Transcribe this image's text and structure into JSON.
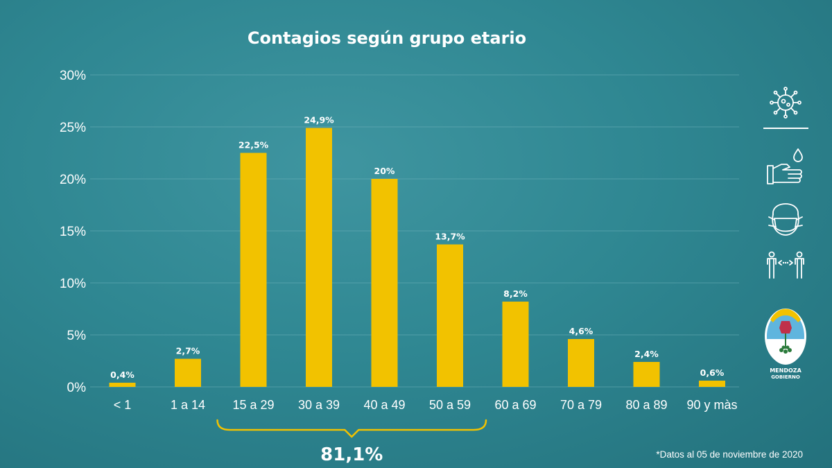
{
  "chart_data": {
    "type": "bar",
    "title": "Contagios según grupo etario",
    "categories": [
      "< 1",
      "1 a 14",
      "15 a 29",
      "30 a 39",
      "40 a 49",
      "50 a 59",
      "60 a 69",
      "70 a 79",
      "80 a 89",
      "90 y màs"
    ],
    "values": [
      0.4,
      2.7,
      22.5,
      24.9,
      20,
      13.7,
      8.2,
      4.6,
      2.4,
      0.6
    ],
    "data_labels": [
      "0,4%",
      "2,7%",
      "22,5%",
      "24,9%",
      "20%",
      "13,7%",
      "8,2%",
      "4,6%",
      "2,4%",
      "0,6%"
    ],
    "yticks": [
      "0%",
      "5%",
      "10%",
      "15%",
      "20%",
      "25%",
      "30%"
    ],
    "ylim": [
      0,
      30
    ],
    "grid": true,
    "bar_color": "#f2c200",
    "bracket": {
      "from_category": "15 a 29",
      "to_category": "50 a 59",
      "label": "81,1%"
    }
  },
  "footnote": "*Datos al 05 de noviembre de 2020",
  "sidebar": {
    "icons": [
      "virus-icon",
      "handwash-icon",
      "face-mask-icon",
      "social-distance-icon"
    ],
    "logo": {
      "line1": "MENDOZA",
      "line2": "GOBIERNO"
    }
  },
  "colors": {
    "background": "#2f8792",
    "bar": "#f2c200",
    "text": "#ffffff"
  }
}
